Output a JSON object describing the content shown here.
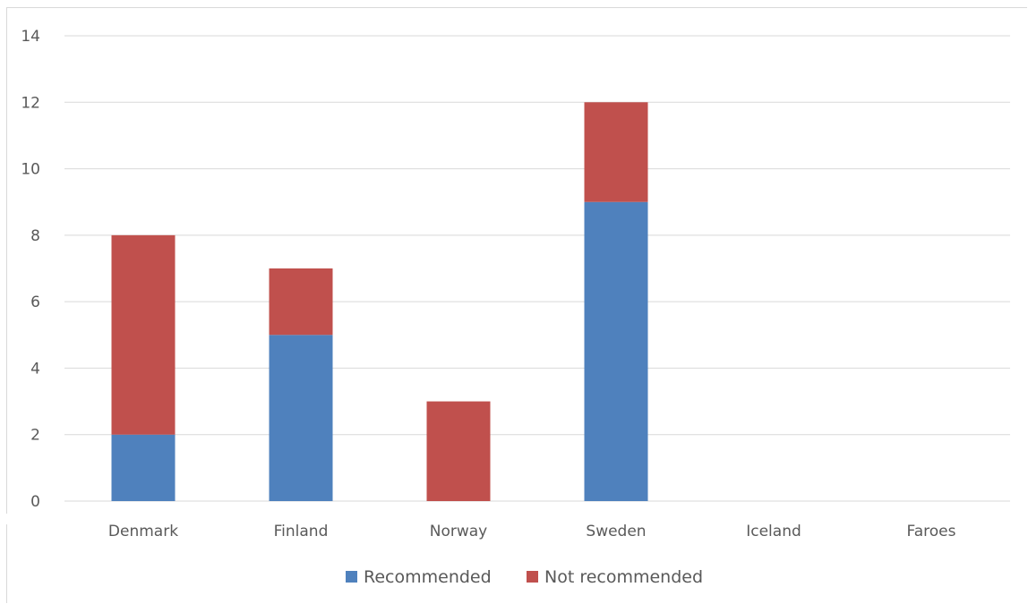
{
  "chart_data": {
    "type": "bar",
    "stacked": true,
    "categories": [
      "Denmark",
      "Finland",
      "Norway",
      "Sweden",
      "Iceland",
      "Faroes"
    ],
    "series": [
      {
        "name": "Recommended",
        "color": "#4f81bd",
        "values": [
          2,
          5,
          0,
          9,
          0,
          0
        ]
      },
      {
        "name": "Not recommended",
        "color": "#c0504d",
        "values": [
          6,
          2,
          3,
          3,
          0,
          0
        ]
      }
    ],
    "ylim": [
      0,
      14
    ],
    "yticks": [
      0,
      2,
      4,
      6,
      8,
      10,
      12,
      14
    ],
    "grid": true,
    "legend": "bottom-center"
  }
}
